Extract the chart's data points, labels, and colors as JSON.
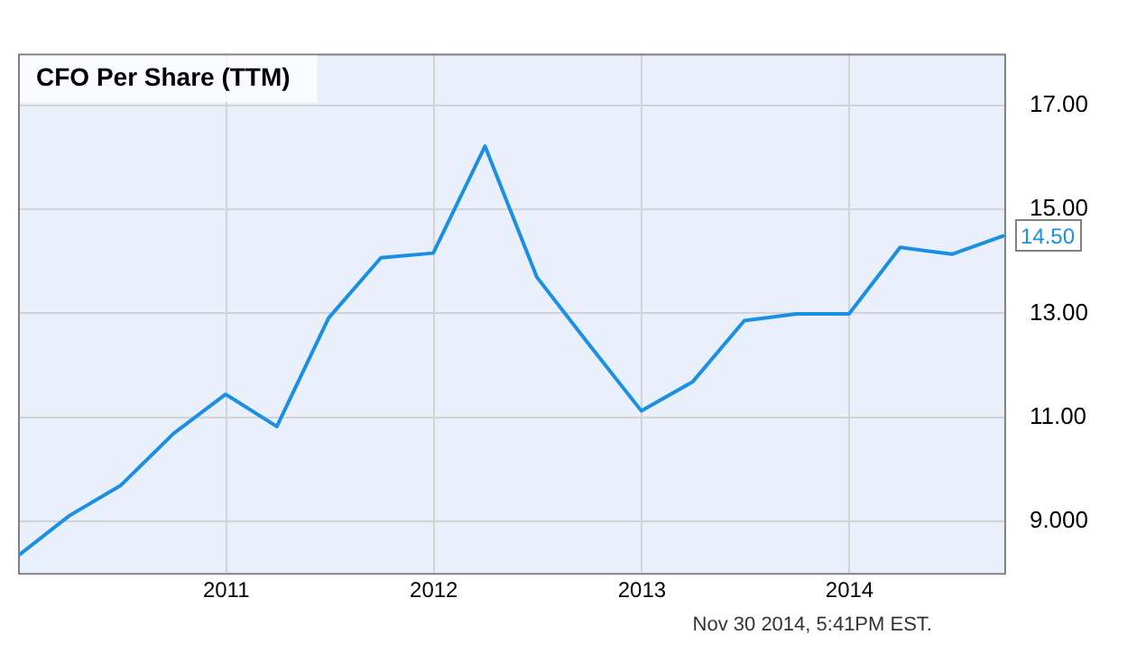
{
  "chart_data": {
    "type": "line",
    "title": "CFO Per Share (TTM)",
    "x": [
      "2009-12-31",
      "2010-03-31",
      "2010-06-30",
      "2010-09-30",
      "2010-12-31",
      "2011-03-31",
      "2011-06-30",
      "2011-09-30",
      "2011-12-31",
      "2012-03-31",
      "2012-06-30",
      "2012-09-30",
      "2012-12-31",
      "2013-03-31",
      "2013-06-30",
      "2013-09-30",
      "2013-12-31",
      "2014-03-31",
      "2014-06-30",
      "2014-09-30"
    ],
    "series": [
      {
        "color": "#1a8fe3",
        "values": [
          8.33,
          9.1,
          9.69,
          10.68,
          11.44,
          10.82,
          12.91,
          14.07,
          14.16,
          16.22,
          13.7,
          12.4,
          11.12,
          11.68,
          12.86,
          12.99,
          12.99,
          14.27,
          14.14,
          14.5
        ],
        "value_labels": [
          null,
          null,
          null,
          null,
          null,
          null,
          null,
          null,
          null,
          null,
          null,
          null,
          null,
          null,
          null,
          null,
          null,
          null,
          null,
          "14.50"
        ]
      }
    ],
    "xlim": [
      "2009-12-31",
      "2014-09-30"
    ],
    "xticks": [
      {
        "value": "2011-01-01",
        "label": "2011"
      },
      {
        "value": "2012-01-01",
        "label": "2012"
      },
      {
        "value": "2013-01-01",
        "label": "2013"
      },
      {
        "value": "2014-01-01",
        "label": "2014"
      }
    ],
    "ylim": [
      8,
      18
    ],
    "yticks": [
      {
        "value": 9,
        "label": "9.000"
      },
      {
        "value": 11,
        "label": "11.00"
      },
      {
        "value": 13,
        "label": "13.00"
      },
      {
        "value": 15,
        "label": "15.00"
      },
      {
        "value": 17,
        "label": "17.00"
      }
    ],
    "grid": true,
    "legend": false,
    "marker": "none",
    "line_style": "solid",
    "annotations": [
      "Nov 30 2014, 5:41PM EST."
    ]
  }
}
